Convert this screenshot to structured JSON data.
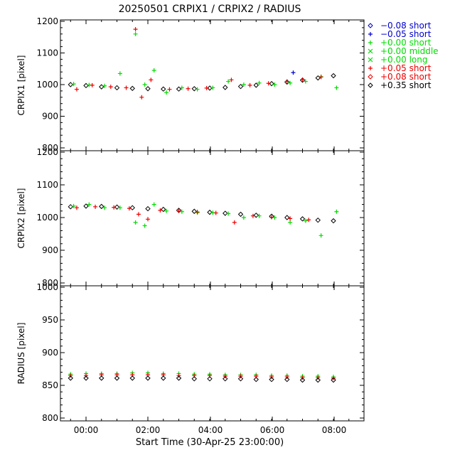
{
  "title": "20250501  CRPIX1  /  CRPIX2  /  RADIUS",
  "xlabel": "Start Time (30-Apr-25 23:00:00)",
  "x_ticks": [
    "00:00",
    "02:00",
    "04:00",
    "06:00",
    "08:00"
  ],
  "colors": {
    "black": "#000000",
    "blue": "#0000cc",
    "green": "#00dd00",
    "red": "#ee0000"
  },
  "legend": [
    {
      "symbol": "diamond",
      "label": "−0.08 short",
      "color": "#0000cc"
    },
    {
      "symbol": "plus",
      "label": "−0.05 short",
      "color": "#0000cc"
    },
    {
      "symbol": "plus",
      "label": "+0.00 short",
      "color": "#00dd00"
    },
    {
      "symbol": "x",
      "label": "+0.00 middle",
      "color": "#00dd00"
    },
    {
      "symbol": "x",
      "label": "+0.00 long",
      "color": "#00dd00"
    },
    {
      "symbol": "plus",
      "label": "+0.05 short",
      "color": "#ee0000"
    },
    {
      "symbol": "diamond",
      "label": "+0.08 short",
      "color": "#ee0000"
    },
    {
      "symbol": "diamond",
      "label": "+0.35 short",
      "color": "#000000"
    }
  ],
  "chart_data": [
    {
      "type": "scatter",
      "ylabel": "CRPIX1 [pixel]",
      "ylim": [
        800,
        1200
      ],
      "yticks": [
        "800",
        "900",
        "1000",
        "1100",
        "1200"
      ],
      "xlim_hours": [
        -1,
        9
      ],
      "series": [
        {
          "name": "+0.35 short",
          "color": "#000000",
          "symbol": "diamond",
          "x": [
            -0.5,
            0.0,
            0.5,
            1.0,
            1.5,
            2.0,
            2.5,
            3.0,
            3.5,
            4.0,
            4.5,
            5.0,
            5.5,
            6.0,
            6.5,
            7.0,
            7.5,
            8.0
          ],
          "y": [
            1000,
            997,
            993,
            990,
            988,
            987,
            986,
            986,
            987,
            989,
            991,
            994,
            998,
            1003,
            1008,
            1014,
            1021,
            1028
          ]
        },
        {
          "name": "+0.00 short",
          "color": "#00dd00",
          "symbol": "plus",
          "x": [
            -0.4,
            0.1,
            0.6,
            1.1,
            1.6,
            1.9,
            2.2,
            2.6,
            3.1,
            3.6,
            4.1,
            4.6,
            5.1,
            5.6,
            6.1,
            6.6,
            7.1,
            7.6,
            8.1
          ],
          "y": [
            1002,
            999,
            996,
            1035,
            1160,
            1000,
            1045,
            975,
            990,
            985,
            990,
            1010,
            1000,
            1005,
            1000,
            1005,
            1010,
            1025,
            990
          ]
        },
        {
          "name": "+0.05 short",
          "color": "#ee0000",
          "symbol": "plus",
          "x": [
            -0.3,
            0.2,
            0.8,
            1.3,
            1.6,
            1.8,
            2.1,
            2.7,
            3.3,
            3.9,
            4.7,
            5.3,
            5.9,
            6.5,
            7.0,
            7.6
          ],
          "y": [
            985,
            998,
            993,
            990,
            1175,
            960,
            1015,
            985,
            987,
            989,
            1015,
            998,
            1004,
            1010,
            1016,
            1024
          ]
        },
        {
          "name": "−0.05 short",
          "color": "#0000cc",
          "symbol": "plus",
          "x": [
            6.7
          ],
          "y": [
            1038
          ]
        }
      ]
    },
    {
      "type": "scatter",
      "ylabel": "CRPIX2 [pixel]",
      "ylim": [
        800,
        1200
      ],
      "yticks": [
        "800",
        "900",
        "1000",
        "1100",
        "1200"
      ],
      "xlim_hours": [
        -1,
        9
      ],
      "series": [
        {
          "name": "+0.35 short",
          "color": "#000000",
          "symbol": "diamond",
          "x": [
            -0.5,
            0.0,
            0.5,
            1.0,
            1.5,
            2.0,
            2.5,
            3.0,
            3.5,
            4.0,
            4.5,
            5.0,
            5.5,
            6.0,
            6.5,
            7.0,
            7.5,
            8.0
          ],
          "y": [
            1033,
            1035,
            1034,
            1032,
            1030,
            1027,
            1025,
            1022,
            1019,
            1016,
            1013,
            1010,
            1007,
            1004,
            1000,
            996,
            992,
            990
          ]
        },
        {
          "name": "+0.00 short",
          "color": "#00dd00",
          "symbol": "plus",
          "x": [
            -0.4,
            0.1,
            0.6,
            1.1,
            1.6,
            1.9,
            2.2,
            2.6,
            3.1,
            3.6,
            4.1,
            4.6,
            5.1,
            5.6,
            6.1,
            6.6,
            7.1,
            7.6,
            8.1
          ],
          "y": [
            1035,
            1040,
            1030,
            1030,
            985,
            975,
            1040,
            1020,
            1018,
            1015,
            1015,
            1012,
            1000,
            1005,
            1000,
            985,
            990,
            945,
            1018
          ]
        },
        {
          "name": "+0.05 short",
          "color": "#ee0000",
          "symbol": "plus",
          "x": [
            -0.3,
            0.3,
            0.9,
            1.4,
            1.7,
            2.0,
            2.4,
            3.0,
            3.6,
            4.2,
            4.8,
            5.4,
            6.0,
            6.6,
            7.2
          ],
          "y": [
            1030,
            1033,
            1031,
            1028,
            1010,
            995,
            1022,
            1020,
            1017,
            1014,
            985,
            1005,
            1001,
            997,
            993
          ]
        }
      ]
    },
    {
      "type": "scatter",
      "ylabel": "RADIUS [pixel]",
      "ylim": [
        800,
        1000
      ],
      "yticks": [
        "800",
        "850",
        "900",
        "950",
        "1000"
      ],
      "xlim_hours": [
        -1,
        9
      ],
      "series": [
        {
          "name": "+0.00 short",
          "color": "#00dd00",
          "symbol": "plus",
          "x": [
            -0.5,
            0.0,
            0.5,
            1.0,
            1.5,
            2.0,
            2.5,
            3.0,
            3.5,
            4.0,
            4.5,
            5.0,
            5.5,
            6.0,
            6.5,
            7.0,
            7.5,
            8.0
          ],
          "y": [
            867,
            868,
            868,
            868,
            869,
            869,
            868,
            868,
            867,
            867,
            866,
            866,
            866,
            865,
            865,
            864,
            864,
            863
          ]
        },
        {
          "name": "+0.05 short",
          "color": "#ee0000",
          "symbol": "plus",
          "x": [
            -0.5,
            0.0,
            0.5,
            1.0,
            1.5,
            2.0,
            2.5,
            3.0,
            3.5,
            4.0,
            4.5,
            5.0,
            5.5,
            6.0,
            6.5,
            7.0,
            7.5,
            8.0
          ],
          "y": [
            865,
            865,
            866,
            866,
            866,
            866,
            866,
            865,
            865,
            865,
            864,
            864,
            864,
            863,
            863,
            862,
            862,
            861
          ]
        },
        {
          "name": "+0.35 short",
          "color": "#000000",
          "symbol": "diamond",
          "x": [
            -0.5,
            0.0,
            0.5,
            1.0,
            1.5,
            2.0,
            2.5,
            3.0,
            3.5,
            4.0,
            4.5,
            5.0,
            5.5,
            6.0,
            6.5,
            7.0,
            7.5,
            8.0
          ],
          "y": [
            861,
            861,
            861,
            861,
            861,
            861,
            861,
            861,
            860,
            860,
            860,
            860,
            859,
            859,
            859,
            858,
            858,
            858
          ]
        }
      ]
    }
  ]
}
